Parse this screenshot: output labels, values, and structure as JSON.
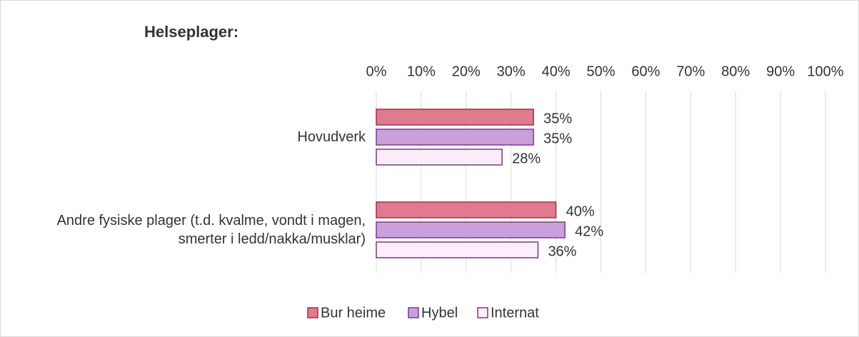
{
  "chart_data": {
    "type": "bar",
    "orientation": "horizontal",
    "title": "Helseplager:",
    "categories": [
      "Hovudverk",
      "Andre fysiske plager (t.d. kvalme, vondt i magen, smerter i ledd/nakka/musklar)"
    ],
    "series": [
      {
        "name": "Bur heime",
        "color": "#e07a8f",
        "edge": "#a0304a",
        "values": [
          35,
          40
        ],
        "value_labels": [
          "35%",
          "40%"
        ]
      },
      {
        "name": "Hybel",
        "color": "#c9a0dc",
        "edge": "#7a3a8a",
        "values": [
          35,
          42
        ],
        "value_labels": [
          "35%",
          "42%"
        ]
      },
      {
        "name": "Internat",
        "color": "#fbeefa",
        "edge": "#7a3a7a",
        "values": [
          28,
          36
        ],
        "value_labels": [
          "28%",
          "36%"
        ]
      }
    ],
    "xlim": [
      0,
      100
    ],
    "xticks": [
      {
        "value": 0,
        "label": "0%"
      },
      {
        "value": 10,
        "label": "10%"
      },
      {
        "value": 20,
        "label": "20%"
      },
      {
        "value": 30,
        "label": "30%"
      },
      {
        "value": 40,
        "label": "40%"
      },
      {
        "value": 50,
        "label": "50%"
      },
      {
        "value": 60,
        "label": "60%"
      },
      {
        "value": 70,
        "label": "70%"
      },
      {
        "value": 80,
        "label": "80%"
      },
      {
        "value": 90,
        "label": "90%"
      },
      {
        "value": 100,
        "label": "100%"
      }
    ],
    "grid": true,
    "legend": "bottom"
  }
}
